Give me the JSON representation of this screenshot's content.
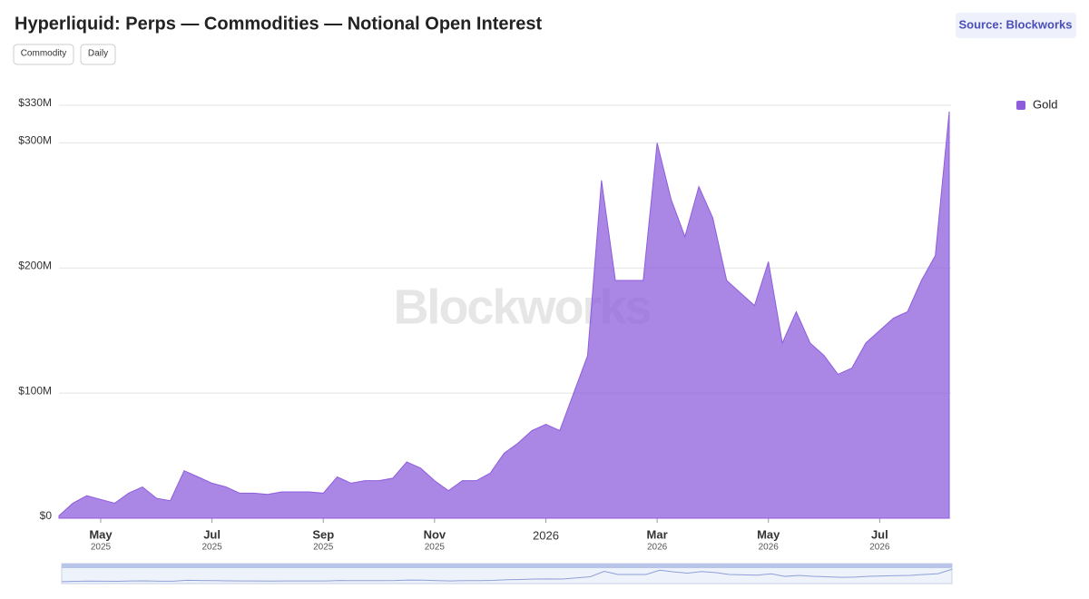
{
  "chart_data": {
    "type": "area",
    "title": "Hyperliquid: Perps — Commodities — Notional Open Interest",
    "source": "Source: Blockworks",
    "controls": [
      "Commodity",
      "Daily"
    ],
    "watermark": "Blockworks",
    "legend": "right",
    "grid": true,
    "categories": [
      null,
      null,
      null,
      [
        "May",
        "2025"
      ],
      null,
      null,
      null,
      null,
      null,
      null,
      null,
      [
        "Jul",
        "2025"
      ],
      null,
      null,
      null,
      null,
      null,
      null,
      null,
      [
        "Sep",
        "2025"
      ],
      null,
      null,
      null,
      null,
      null,
      null,
      null,
      [
        "Nov",
        "2025"
      ],
      null,
      null,
      null,
      null,
      null,
      null,
      null,
      [
        "2026"
      ],
      null,
      null,
      null,
      null,
      null,
      null,
      null,
      [
        "Mar",
        "2026"
      ],
      null,
      null,
      null,
      null,
      null,
      null,
      null,
      [
        "May",
        "2026"
      ],
      null,
      null,
      null,
      null,
      null,
      null,
      null,
      [
        "Jul",
        "2026"
      ],
      null,
      null,
      null,
      null,
      null
    ],
    "series": [
      {
        "name": "Gold",
        "color": "#8e5ddc",
        "values": [
          2,
          12,
          18,
          15,
          12,
          20,
          25,
          16,
          14,
          38,
          33,
          28,
          25,
          20,
          20,
          19,
          21,
          21,
          21,
          20,
          33,
          28,
          30,
          30,
          32,
          45,
          40,
          30,
          22,
          30,
          30,
          36,
          52,
          60,
          70,
          75,
          70,
          100,
          130,
          270,
          190,
          190,
          190,
          300,
          255,
          225,
          265,
          240,
          190,
          180,
          170,
          205,
          140,
          165,
          140,
          130,
          115,
          120,
          140,
          150,
          160,
          165,
          190,
          210,
          325
        ]
      }
    ],
    "ylim": [
      0,
      330
    ],
    "yticks": [
      {
        "value": 0,
        "label": "$0"
      },
      {
        "value": 100,
        "label": "$100M"
      },
      {
        "value": 200,
        "label": "$200M"
      },
      {
        "value": 300,
        "label": "$300M"
      },
      {
        "value": 330,
        "label": "$330M"
      }
    ]
  }
}
